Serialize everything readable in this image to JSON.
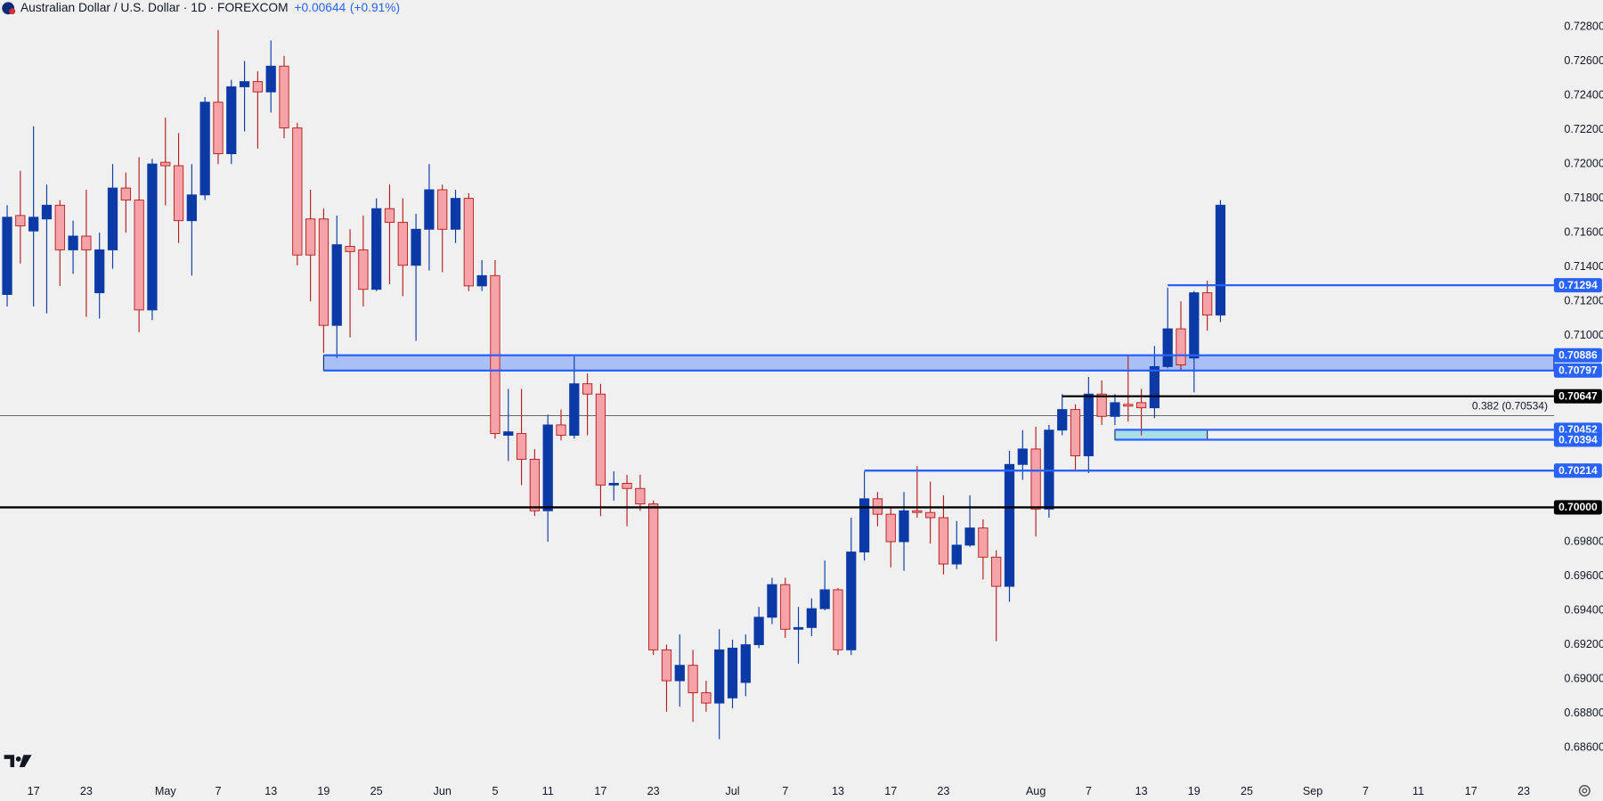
{
  "chart_data": {
    "type": "candlestick",
    "title": "Australian Dollar / U.S. Dollar · 1D · FOREXCOM",
    "change": "+0.00644",
    "change_percent": "(+0.91%)",
    "categories": [
      null,
      null,
      "17",
      null,
      null,
      null,
      "23",
      null,
      null,
      null,
      null,
      null,
      "May",
      null,
      null,
      null,
      "7",
      null,
      null,
      null,
      "13",
      null,
      null,
      null,
      "19",
      null,
      null,
      null,
      "25",
      null,
      null,
      null,
      null,
      "Jun",
      null,
      null,
      null,
      "5",
      null,
      null,
      null,
      "11",
      null,
      null,
      null,
      "17",
      null,
      null,
      null,
      "23",
      null,
      null,
      null,
      null,
      null,
      "Jul",
      null,
      null,
      null,
      "7",
      null,
      null,
      null,
      "13",
      null,
      null,
      null,
      "17",
      null,
      null,
      null,
      "23",
      null,
      null,
      null,
      null,
      null,
      null,
      "Aug",
      null,
      null,
      null,
      "7",
      null,
      null,
      null,
      "13",
      null,
      null,
      null,
      "19",
      null,
      null,
      null,
      "25",
      null,
      null,
      null,
      null,
      "Sep",
      null,
      null,
      null,
      "7",
      null,
      null,
      null,
      "11",
      null,
      null,
      null,
      "17",
      null,
      null,
      null,
      "23"
    ],
    "open": [
      0.7124,
      0.717,
      0.7161,
      0.7168,
      0.7176,
      0.715,
      0.7158,
      0.7125,
      0.715,
      0.7186,
      0.7179,
      0.7115,
      0.7201,
      0.7199,
      0.7167,
      0.7182,
      0.7236,
      0.7206,
      0.7245,
      0.7248,
      0.7242,
      0.7257,
      0.7221,
      0.7168,
      0.7168,
      0.7106,
      0.7152,
      0.715,
      0.7127,
      0.7174,
      0.7166,
      0.7141,
      0.7162,
      0.7185,
      0.7162,
      0.718,
      0.7129,
      0.7135,
      0.7042,
      0.7043,
      0.7028,
      0.6998,
      0.7048,
      0.7042,
      0.7072,
      0.7066,
      0.7013,
      0.7014,
      0.7011,
      0.7002,
      0.6917,
      0.6899,
      0.6908,
      0.6892,
      0.6886,
      0.6889,
      0.6898,
      0.692,
      0.6936,
      0.6955,
      0.6929,
      0.693,
      0.6941,
      0.6952,
      0.6917,
      0.6974,
      0.7005,
      0.6996,
      0.698,
      0.6998,
      0.6997,
      0.6994,
      0.6967,
      0.6978,
      0.6988,
      0.6971,
      0.6954,
      0.7025,
      0.7034,
      0.6999,
      0.7045,
      0.7057,
      0.703,
      0.7066,
      0.7053,
      0.706,
      0.7061,
      0.7058,
      0.7082,
      0.7104,
      0.7087,
      0.7125,
      0.7112,
      null,
      null,
      null,
      null,
      null,
      null,
      null,
      null,
      null,
      null,
      null,
      null,
      null,
      null,
      null,
      null,
      null,
      null,
      null,
      null,
      null,
      null,
      null
    ],
    "high": [
      0.7176,
      0.7196,
      0.7222,
      0.7188,
      0.7179,
      0.7167,
      0.7185,
      0.716,
      0.72,
      0.7195,
      0.7204,
      0.7203,
      0.7227,
      0.7218,
      0.72,
      0.7239,
      0.7278,
      0.7249,
      0.726,
      0.7254,
      0.7272,
      0.7263,
      0.7224,
      0.7185,
      0.7174,
      0.717,
      0.7162,
      0.717,
      0.718,
      0.7188,
      0.718,
      0.7171,
      0.72,
      0.7188,
      0.7185,
      0.7183,
      0.7144,
      0.7144,
      0.7069,
      0.7069,
      0.7034,
      0.7054,
      0.7057,
      0.7088,
      0.7078,
      0.7072,
      0.7021,
      0.7019,
      0.7019,
      0.7004,
      0.692,
      0.6926,
      0.6917,
      0.6899,
      0.6929,
      0.6923,
      0.6926,
      0.6942,
      0.6959,
      0.6959,
      0.6942,
      0.6947,
      0.6969,
      0.6953,
      0.6994,
      0.7021,
      0.7009,
      0.7,
      0.7009,
      0.7024,
      0.7015,
      0.7007,
      0.6992,
      0.7007,
      0.6993,
      0.6975,
      0.7033,
      0.7045,
      0.7047,
      0.7048,
      0.7066,
      0.706,
      0.7076,
      0.7074,
      0.7066,
      0.7089,
      0.7069,
      0.7094,
      0.7128,
      0.712,
      0.7126,
      0.7132,
      0.7179,
      null,
      null,
      null,
      null,
      null,
      null,
      null,
      null,
      null,
      null,
      null,
      null,
      null,
      null,
      null,
      null,
      null,
      null,
      null,
      null,
      null,
      null,
      null
    ],
    "low": [
      0.7117,
      0.7142,
      0.7117,
      0.7113,
      0.7129,
      0.7136,
      0.7111,
      0.711,
      0.7139,
      0.716,
      0.7102,
      0.7109,
      0.7176,
      0.7154,
      0.7135,
      0.7179,
      0.72,
      0.72,
      0.7219,
      0.7209,
      0.723,
      0.7215,
      0.7141,
      0.712,
      0.709,
      0.7087,
      0.7099,
      0.7117,
      0.7126,
      0.713,
      0.7123,
      0.7097,
      0.7138,
      0.7137,
      0.7154,
      0.7126,
      0.7126,
      0.704,
      0.7027,
      0.7013,
      0.6995,
      0.698,
      0.7039,
      0.704,
      0.7042,
      0.6995,
      0.7004,
      0.6989,
      0.6998,
      0.6914,
      0.6881,
      0.6884,
      0.6875,
      0.6881,
      0.6865,
      0.6883,
      0.689,
      0.6918,
      0.6932,
      0.6924,
      0.6909,
      0.6925,
      0.694,
      0.6914,
      0.6914,
      0.6969,
      0.6989,
      0.6965,
      0.6963,
      0.6994,
      0.6979,
      0.6961,
      0.6964,
      0.6977,
      0.6958,
      0.6922,
      0.6945,
      0.7016,
      0.6983,
      0.6994,
      0.7042,
      0.7021,
      0.702,
      0.7048,
      0.7048,
      0.705,
      0.7042,
      0.7052,
      0.7081,
      0.708,
      0.7067,
      0.7103,
      0.7108,
      null,
      null,
      null,
      null,
      null,
      null,
      null,
      null,
      null,
      null,
      null,
      null,
      null,
      null,
      null,
      null,
      null,
      null,
      null,
      null,
      null,
      null,
      null
    ],
    "close": [
      0.7169,
      0.7164,
      0.7169,
      0.7176,
      0.715,
      0.7158,
      0.715,
      0.715,
      0.7186,
      0.7179,
      0.7115,
      0.72,
      0.7199,
      0.7167,
      0.7182,
      0.7236,
      0.7206,
      0.7245,
      0.7248,
      0.7242,
      0.7257,
      0.7221,
      0.7147,
      0.7147,
      0.7106,
      0.7153,
      0.7149,
      0.7127,
      0.7174,
      0.7166,
      0.7141,
      0.7162,
      0.7185,
      0.7162,
      0.718,
      0.7129,
      0.7135,
      0.7043,
      0.7044,
      0.7028,
      0.6998,
      0.7048,
      0.7042,
      0.7072,
      0.7066,
      0.7013,
      0.7014,
      0.7011,
      0.7002,
      0.6917,
      0.6899,
      0.6908,
      0.6892,
      0.6886,
      0.6917,
      0.6918,
      0.692,
      0.6936,
      0.6955,
      0.6929,
      0.693,
      0.6941,
      0.6952,
      0.6917,
      0.6974,
      0.7005,
      0.6996,
      0.698,
      0.6998,
      0.6997,
      0.6994,
      0.6967,
      0.6978,
      0.6988,
      0.6971,
      0.6954,
      0.7025,
      0.7034,
      0.6999,
      0.7045,
      0.7057,
      0.703,
      0.7066,
      0.7053,
      0.7061,
      0.7059,
      0.7058,
      0.7082,
      0.7104,
      0.7083,
      0.7125,
      0.7112,
      0.7176,
      null,
      null,
      null,
      null,
      null,
      null,
      null,
      null,
      null,
      null,
      null,
      null,
      null,
      null,
      null,
      null,
      null,
      null,
      null,
      null,
      null,
      null,
      null
    ],
    "up_color": "#0b3aa6",
    "down_color": "#f5a3a8",
    "ylim": [
      0.68427,
      0.72955
    ],
    "yticks": [
      {
        "value": 0.728,
        "label": "0.72800"
      },
      {
        "value": 0.726,
        "label": "0.72600"
      },
      {
        "value": 0.724,
        "label": "0.72400"
      },
      {
        "value": 0.722,
        "label": "0.72200"
      },
      {
        "value": 0.72,
        "label": "0.72000"
      },
      {
        "value": 0.718,
        "label": "0.71800"
      },
      {
        "value": 0.716,
        "label": "0.71600"
      },
      {
        "value": 0.714,
        "label": "0.71400"
      },
      {
        "value": 0.712,
        "label": "0.71200"
      },
      {
        "value": 0.71,
        "label": "0.71000"
      },
      {
        "value": 0.698,
        "label": "0.69800"
      },
      {
        "value": 0.696,
        "label": "0.69600"
      },
      {
        "value": 0.694,
        "label": "0.69400"
      },
      {
        "value": 0.692,
        "label": "0.69200"
      },
      {
        "value": 0.69,
        "label": "0.69000"
      },
      {
        "value": 0.688,
        "label": "0.68800"
      },
      {
        "value": 0.686,
        "label": "0.68600"
      }
    ],
    "levels": [
      {
        "value": 0.71294,
        "label": "0.71294",
        "color": "#2962ff"
      },
      {
        "value": 0.70886,
        "label": "0.70886",
        "color": "#2962ff"
      },
      {
        "value": 0.70797,
        "label": "0.70797",
        "color": "#2962ff"
      },
      {
        "value": 0.70647,
        "label": "0.70647",
        "color": "#000000"
      },
      {
        "value": 0.70452,
        "label": "0.70452",
        "color": "#2962ff"
      },
      {
        "value": 0.70394,
        "label": "0.70394",
        "color": "#2962ff"
      },
      {
        "value": 0.70214,
        "label": "0.70214",
        "color": "#2962ff"
      },
      {
        "value": 0.7,
        "label": "0.70000",
        "color": "#000000"
      }
    ],
    "fib_level": {
      "value": 0.70534,
      "label": "0.382 (0.70534)"
    }
  }
}
